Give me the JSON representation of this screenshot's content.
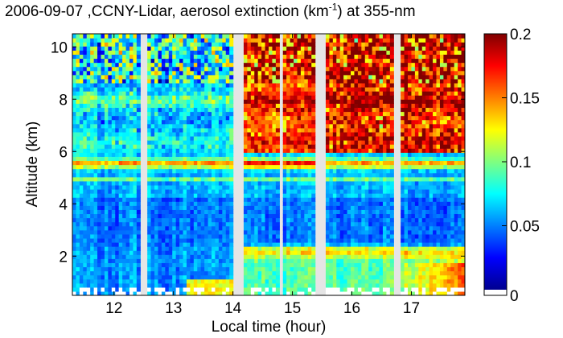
{
  "chart_data": {
    "type": "heatmap",
    "title": {
      "prefix": "2006-09-07 ,CCNY-Lidar, aerosol extinction (km",
      "superscript": "-1",
      "suffix": ") at 355-nm"
    },
    "xlabel": "Local time (hour)",
    "ylabel": "Altitude (km)",
    "xlim": [
      11.3,
      17.9
    ],
    "ylim": [
      0.5,
      10.5
    ],
    "x_ticks": [
      "12",
      "13",
      "14",
      "15",
      "16",
      "17"
    ],
    "x_tick_values": [
      12,
      13,
      14,
      15,
      16,
      17
    ],
    "y_ticks": [
      "2",
      "4",
      "6",
      "8",
      "10"
    ],
    "y_tick_values": [
      2,
      4,
      6,
      8,
      10
    ],
    "colorbar": {
      "min": 0,
      "max": 0.2,
      "ticks": [
        "0",
        "0.05",
        "0.1",
        "0.15",
        "0.2"
      ],
      "tick_values": [
        0,
        0.05,
        0.1,
        0.15,
        0.2
      ],
      "colormap": "jet"
    },
    "data_gaps_hours": [
      [
        12.43,
        12.57
      ],
      [
        13.98,
        14.2
      ],
      [
        14.79,
        14.86
      ],
      [
        15.4,
        15.53
      ],
      [
        16.67,
        16.82
      ]
    ],
    "layers": [
      {
        "feature": "elevated aerosol layer",
        "altitude_km": [
          5.3,
          5.8
        ],
        "time_range": [
          11.3,
          17.9
        ]
      },
      {
        "feature": "thin aerosol layer",
        "altitude_km": [
          4.8,
          5.1
        ],
        "time_range": [
          11.3,
          17.9
        ]
      },
      {
        "feature": "upper aerosol/cloud layer",
        "altitude_km": [
          7.7,
          8.3
        ],
        "time_range": [
          11.3,
          17.9
        ]
      },
      {
        "feature": "boundary layer top",
        "altitude_km": [
          2.0,
          2.6
        ],
        "time_range": [
          14.2,
          17.9
        ]
      },
      {
        "feature": "high extinction aloft",
        "altitude_km": [
          6.0,
          10.5
        ],
        "time_range": [
          14.2,
          17.9
        ]
      }
    ],
    "grid": false
  }
}
